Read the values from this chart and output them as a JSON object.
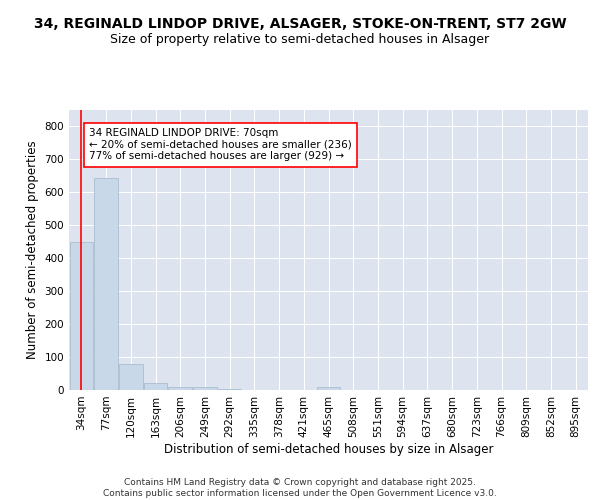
{
  "title_line1": "34, REGINALD LINDOP DRIVE, ALSAGER, STOKE-ON-TRENT, ST7 2GW",
  "title_line2": "Size of property relative to semi-detached houses in Alsager",
  "xlabel": "Distribution of semi-detached houses by size in Alsager",
  "ylabel": "Number of semi-detached properties",
  "categories": [
    "34sqm",
    "77sqm",
    "120sqm",
    "163sqm",
    "206sqm",
    "249sqm",
    "292sqm",
    "335sqm",
    "378sqm",
    "421sqm",
    "465sqm",
    "508sqm",
    "551sqm",
    "594sqm",
    "637sqm",
    "680sqm",
    "723sqm",
    "766sqm",
    "809sqm",
    "852sqm",
    "895sqm"
  ],
  "values": [
    450,
    645,
    80,
    20,
    10,
    8,
    2,
    0,
    0,
    0,
    8,
    0,
    0,
    0,
    0,
    0,
    0,
    0,
    0,
    0,
    0
  ],
  "bar_color": "#c8d8e8",
  "bar_edge_color": "#a0b8cc",
  "annotation_text": "34 REGINALD LINDOP DRIVE: 70sqm\n← 20% of semi-detached houses are smaller (236)\n77% of semi-detached houses are larger (929) →",
  "annotation_box_color": "white",
  "annotation_box_edge_color": "red",
  "ylim": [
    0,
    850
  ],
  "yticks": [
    0,
    100,
    200,
    300,
    400,
    500,
    600,
    700,
    800
  ],
  "background_color": "#dde3ef",
  "grid_color": "white",
  "footer_text": "Contains HM Land Registry data © Crown copyright and database right 2025.\nContains public sector information licensed under the Open Government Licence v3.0.",
  "title_fontsize": 10,
  "subtitle_fontsize": 9,
  "axis_label_fontsize": 8.5,
  "tick_fontsize": 7.5,
  "annotation_fontsize": 7.5,
  "footer_fontsize": 6.5,
  "bar_width": 0.95
}
